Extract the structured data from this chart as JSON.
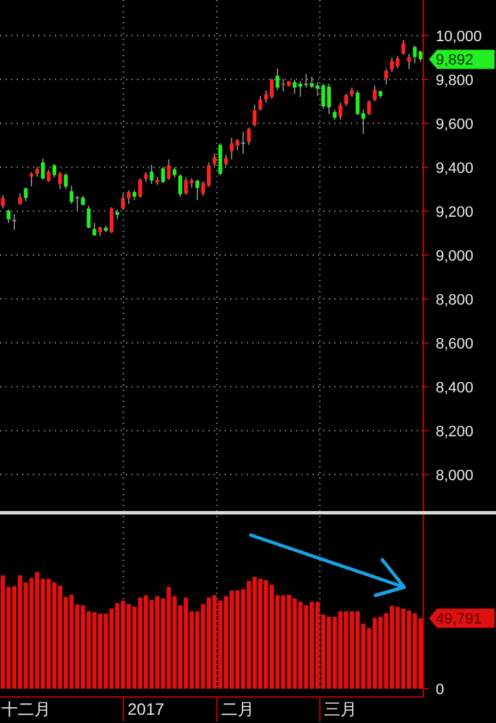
{
  "chart_data": [
    {
      "type": "candlestick",
      "categories": [
        null,
        null,
        null,
        null,
        null,
        null,
        null,
        null,
        null,
        null,
        null,
        null,
        null,
        null,
        null,
        null,
        null,
        null,
        null,
        null,
        null,
        null,
        null,
        null,
        null,
        null,
        null,
        null,
        null,
        null,
        null,
        null,
        null,
        null,
        null,
        null,
        null,
        null,
        null,
        null,
        null,
        null,
        null,
        null,
        null,
        null,
        null,
        null,
        null,
        null,
        null,
        null,
        null,
        null,
        null,
        null,
        null,
        null,
        null,
        null,
        null,
        null,
        null,
        null,
        null,
        null,
        null,
        null,
        null,
        null,
        null,
        null,
        null,
        null
      ],
      "ohlc": [
        [
          9223,
          9274,
          9212,
          9260
        ],
        [
          9202,
          9208,
          9146,
          9163
        ],
        [
          9160,
          9187,
          9115,
          9160
        ],
        [
          9233,
          9281,
          9229,
          9264
        ],
        [
          9304,
          9308,
          9245,
          9260
        ],
        [
          9357,
          9378,
          9312,
          9370
        ],
        [
          9370,
          9401,
          9357,
          9391
        ],
        [
          9422,
          9440,
          9343,
          9349
        ],
        [
          9337,
          9388,
          9333,
          9380
        ],
        [
          9409,
          9415,
          9353,
          9364
        ],
        [
          9324,
          9378,
          9301,
          9372
        ],
        [
          9366,
          9374,
          9301,
          9312
        ],
        [
          9291,
          9316,
          9233,
          9243
        ],
        [
          9264,
          9270,
          9204,
          9264
        ],
        [
          9262,
          9270,
          9225,
          9229
        ],
        [
          9212,
          9225,
          9121,
          9125
        ],
        [
          9119,
          9146,
          9088,
          9090
        ],
        [
          9104,
          9131,
          9088,
          9125
        ],
        [
          9125,
          9135,
          9104,
          9111
        ],
        [
          9104,
          9218,
          9100,
          9212
        ],
        [
          9196,
          9208,
          9163,
          9183
        ],
        [
          9212,
          9281,
          9208,
          9260
        ],
        [
          9260,
          9295,
          9233,
          9287
        ],
        [
          9287,
          9295,
          9250,
          9266
        ],
        [
          9266,
          9349,
          9262,
          9343
        ],
        [
          9347,
          9378,
          9333,
          9368
        ],
        [
          9380,
          9411,
          9324,
          9339
        ],
        [
          9330,
          9357,
          9320,
          9343
        ],
        [
          9395,
          9401,
          9328,
          9333
        ],
        [
          9349,
          9436,
          9343,
          9409
        ],
        [
          9391,
          9399,
          9353,
          9364
        ],
        [
          9362,
          9368,
          9266,
          9277
        ],
        [
          9281,
          9353,
          9274,
          9341
        ],
        [
          9328,
          9349,
          9308,
          9341
        ],
        [
          9339,
          9343,
          9250,
          9306
        ],
        [
          9279,
          9337,
          9270,
          9328
        ],
        [
          9316,
          9422,
          9312,
          9409
        ],
        [
          9415,
          9463,
          9405,
          9447
        ],
        [
          9502,
          9509,
          9364,
          9370
        ],
        [
          9415,
          9457,
          9405,
          9442
        ],
        [
          9473,
          9534,
          9436,
          9509
        ],
        [
          9498,
          9529,
          9477,
          9523
        ],
        [
          9513,
          9561,
          9461,
          9513
        ],
        [
          9515,
          9581,
          9502,
          9575
        ],
        [
          9592,
          9685,
          9585,
          9660
        ],
        [
          9663,
          9725,
          9658,
          9708
        ],
        [
          9708,
          9750,
          9694,
          9733
        ],
        [
          9719,
          9804,
          9713,
          9800
        ],
        [
          9817,
          9850,
          9752,
          9763
        ],
        [
          9775,
          9804,
          9746,
          9781
        ],
        [
          9771,
          9792,
          9767,
          9792
        ],
        [
          9788,
          9798,
          9735,
          9763
        ],
        [
          9781,
          9792,
          9721,
          9767
        ],
        [
          9781,
          9825,
          9763,
          9781
        ],
        [
          9783,
          9813,
          9760,
          9767
        ],
        [
          9773,
          9788,
          9725,
          9758
        ],
        [
          9773,
          9781,
          9667,
          9677
        ],
        [
          9767,
          9781,
          9642,
          9673
        ],
        [
          9652,
          9663,
          9617,
          9625
        ],
        [
          9631,
          9694,
          9617,
          9683
        ],
        [
          9688,
          9735,
          9679,
          9729
        ],
        [
          9729,
          9763,
          9721,
          9750
        ],
        [
          9740,
          9750,
          9638,
          9642
        ],
        [
          9646,
          9663,
          9552,
          9621
        ],
        [
          9642,
          9704,
          9638,
          9700
        ],
        [
          9708,
          9771,
          9700,
          9752
        ],
        [
          9746,
          9750,
          9715,
          9725
        ],
        [
          9804,
          9850,
          9777,
          9840
        ],
        [
          9846,
          9900,
          9833,
          9885
        ],
        [
          9860,
          9908,
          9850,
          9896
        ],
        [
          9917,
          9979,
          9913,
          9965
        ],
        [
          9881,
          9917,
          9846,
          9902
        ],
        [
          9948,
          9954,
          9875,
          9902
        ],
        [
          9927,
          9933,
          9881,
          9892
        ]
      ],
      "colors": [
        "#ff2020",
        "#22ee22",
        "#909090",
        "#ff2020",
        "#22ee22",
        "#ff2020",
        "#ff2020",
        "#22ee22",
        "#ff2020",
        "#22ee22",
        "#ff2020",
        "#22ee22",
        "#22ee22",
        "#909090",
        "#22ee22",
        "#22ee22",
        "#22ee22",
        "#ff2020",
        "#22ee22",
        "#ff2020",
        "#22ee22",
        "#ff2020",
        "#ff2020",
        "#22ee22",
        "#ff2020",
        "#ff2020",
        "#22ee22",
        "#ff2020",
        "#22ee22",
        "#ff2020",
        "#22ee22",
        "#22ee22",
        "#ff2020",
        "#ff2020",
        "#22ee22",
        "#ff2020",
        "#ff2020",
        "#ff2020",
        "#22ee22",
        "#ff2020",
        "#ff2020",
        "#ff2020",
        "#909090",
        "#ff2020",
        "#ff2020",
        "#ff2020",
        "#ff2020",
        "#ff2020",
        "#22ee22",
        "#ff2020",
        "#ff2020",
        "#22ee22",
        "#22ee22",
        "#909090",
        "#22ee22",
        "#22ee22",
        "#22ee22",
        "#22ee22",
        "#22ee22",
        "#ff2020",
        "#ff2020",
        "#ff2020",
        "#22ee22",
        "#22ee22",
        "#ff2020",
        "#ff2020",
        "#22ee22",
        "#ff2020",
        "#ff2020",
        "#ff2020",
        "#ff2020",
        "#ff2020",
        "#22ee22",
        "#22ee22"
      ],
      "ylim": [
        7837,
        10162
      ],
      "yticks": [
        {
          "value": 8000,
          "label": "8,000"
        },
        {
          "value": 8200,
          "label": "8,200"
        },
        {
          "value": 8400,
          "label": "8,400"
        },
        {
          "value": 8600,
          "label": "8,600"
        },
        {
          "value": 8800,
          "label": "8,800"
        },
        {
          "value": 9000,
          "label": "9,000"
        },
        {
          "value": 9200,
          "label": "9,200"
        },
        {
          "value": 9400,
          "label": "9,400"
        },
        {
          "value": 9600,
          "label": "9,600"
        },
        {
          "value": 9800,
          "label": "9,800"
        },
        {
          "value": 10000,
          "label": "10,000"
        }
      ],
      "grid": "y",
      "tick_labels": "y",
      "annotations": [
        "9,892"
      ]
    },
    {
      "type": "bar",
      "categories": [
        null,
        null,
        null,
        null,
        "十二月",
        null,
        null,
        null,
        null,
        null,
        null,
        null,
        null,
        null,
        null,
        null,
        null,
        null,
        null,
        null,
        null,
        null,
        null,
        null,
        null,
        "2017",
        null,
        null,
        null,
        null,
        null,
        null,
        null,
        null,
        null,
        null,
        null,
        null,
        null,
        null,
        null,
        "二月",
        null,
        null,
        null,
        null,
        null,
        null,
        null,
        null,
        null,
        null,
        null,
        null,
        null,
        null,
        null,
        null,
        null,
        "三月",
        null,
        null,
        null,
        null,
        null,
        null,
        null,
        null,
        null,
        null,
        null,
        null,
        null,
        null
      ],
      "values": [
        80000,
        71800,
        72400,
        80000,
        75000,
        78200,
        82400,
        77600,
        77600,
        75000,
        72700,
        64700,
        66300,
        59500,
        58800,
        54600,
        54000,
        53000,
        53000,
        56600,
        60500,
        62100,
        59800,
        57900,
        64300,
        66000,
        62700,
        65300,
        63700,
        71800,
        65300,
        58800,
        64300,
        54600,
        54600,
        59800,
        64300,
        66000,
        62100,
        65300,
        69200,
        69500,
        70200,
        76000,
        78900,
        77600,
        76600,
        73400,
        66000,
        66000,
        66300,
        63700,
        61400,
        58800,
        61400,
        61400,
        52400,
        50800,
        50800,
        54600,
        54600,
        54600,
        54600,
        45900,
        42700,
        50100,
        50800,
        53300,
        58500,
        57900,
        56600,
        55300,
        53300,
        49791
      ],
      "color": "#e01010",
      "ylim": [
        0,
        122000
      ],
      "yticks": [
        0,
        {
          "value": 49791,
          "label": "49,791"
        }
      ],
      "grid": "x"
    }
  ]
}
